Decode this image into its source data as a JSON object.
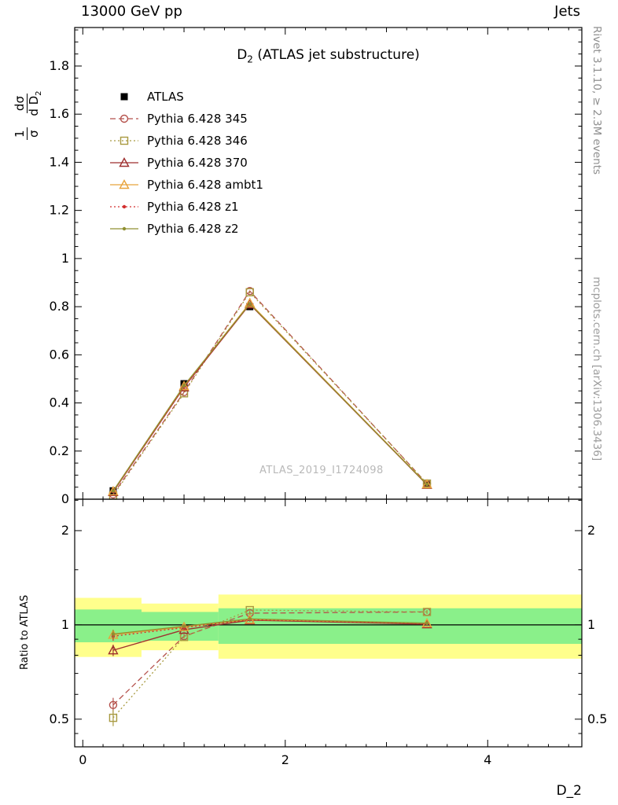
{
  "header": {
    "left": "13000 GeV pp",
    "right": "Jets"
  },
  "right_margin": {
    "top_note": "Rivet 3.1.10, ≥ 2.3M events",
    "bottom_note": "mcplots.cern.ch [arXiv:1306.3436]"
  },
  "watermark": "ATLAS_2019_I1724098",
  "title": {
    "prefix": "D",
    "subscript": "2",
    "suffix": " (ATLAS jet substructure)"
  },
  "axes": {
    "x_label": "D_2",
    "ratio_label": "Ratio to ATLAS",
    "y_label": {
      "frac1_num": "1",
      "frac1_den": "σ",
      "frac2_num": "dσ",
      "frac2_den_main": "d D",
      "frac2_den_sub": "2"
    }
  },
  "chart_data": {
    "type": "line",
    "x": [
      0.3,
      1.0,
      1.65,
      3.4
    ],
    "xlim": [
      -0.08,
      4.93
    ],
    "x_major_ticks": [
      0,
      2,
      4
    ],
    "main_panel": {
      "ylim": [
        0,
        1.96
      ],
      "y_major_ticks": [
        0,
        0.2,
        0.4,
        0.6,
        0.8,
        1,
        1.2,
        1.4,
        1.6,
        1.8
      ],
      "series": [
        {
          "label": "ATLAS",
          "color": "#000000",
          "marker": "square-filled",
          "line": "none",
          "values": [
            0.035,
            0.48,
            0.8,
            0.06
          ],
          "errors": [
            0.012,
            0.015,
            0.012,
            0.008
          ]
        },
        {
          "label": "Pythia 6.428 345",
          "color": "#b5524c",
          "marker": "circle-open",
          "line": "dashed",
          "values": [
            0.02,
            0.445,
            0.865,
            0.065
          ]
        },
        {
          "label": "Pythia 6.428 346",
          "color": "#a89a40",
          "marker": "square-open",
          "line": "dotted",
          "values": [
            0.015,
            0.44,
            0.86,
            0.065
          ]
        },
        {
          "label": "Pythia 6.428 370",
          "color": "#9e2f2f",
          "marker": "triangle-open",
          "line": "solid",
          "values": [
            0.03,
            0.465,
            0.81,
            0.06
          ]
        },
        {
          "label": "Pythia 6.428 ambt1",
          "color": "#e8a33c",
          "marker": "triangle-open",
          "line": "solid",
          "values": [
            0.033,
            0.47,
            0.815,
            0.062
          ]
        },
        {
          "label": "Pythia 6.428 z1",
          "color": "#d22f2f",
          "marker": "dot",
          "line": "dotted",
          "values": [
            0.032,
            0.468,
            0.81,
            0.061
          ]
        },
        {
          "label": "Pythia 6.428 z2",
          "color": "#8f8f30",
          "marker": "dot",
          "line": "solid",
          "values": [
            0.034,
            0.472,
            0.812,
            0.061
          ]
        }
      ]
    },
    "ratio_panel": {
      "scale": "log",
      "ylim": [
        0.408,
        2.52
      ],
      "y_major_ticks": [
        0.5,
        1,
        2
      ],
      "y_minor_ticks": [
        0.45,
        0.6,
        0.7,
        0.8,
        0.9,
        1.5,
        2.5
      ],
      "bands": {
        "yellow": {
          "color": "#ffff8c",
          "segments": [
            {
              "x0": -0.08,
              "x1": 0.58,
              "lo": 0.79,
              "hi": 1.22
            },
            {
              "x0": 0.58,
              "x1": 1.34,
              "lo": 0.83,
              "hi": 1.17
            },
            {
              "x0": 1.34,
              "x1": 4.93,
              "lo": 0.78,
              "hi": 1.25
            }
          ]
        },
        "green": {
          "color": "#8af08a",
          "segments": [
            {
              "x0": -0.08,
              "x1": 0.58,
              "lo": 0.88,
              "hi": 1.12
            },
            {
              "x0": 0.58,
              "x1": 1.34,
              "lo": 0.89,
              "hi": 1.1
            },
            {
              "x0": 1.34,
              "x1": 4.93,
              "lo": 0.87,
              "hi": 1.13
            }
          ]
        }
      },
      "series": [
        {
          "label": "Pythia 6.428 345",
          "values": [
            0.555,
            0.92,
            1.09,
            1.1
          ],
          "errors": [
            0.03,
            0.012,
            0.012,
            0.015
          ]
        },
        {
          "label": "Pythia 6.428 346",
          "values": [
            0.505,
            0.915,
            1.115,
            1.1
          ],
          "errors": [
            0.03,
            0.012,
            0.012,
            0.015
          ]
        },
        {
          "label": "Pythia 6.428 370",
          "values": [
            0.83,
            0.965,
            1.035,
            1.005
          ],
          "errors": [
            0.035,
            0.012,
            0.01,
            0.012
          ]
        },
        {
          "label": "Pythia 6.428 ambt1",
          "values": [
            0.93,
            0.985,
            1.04,
            1.012
          ],
          "errors": [
            0.03,
            0.01,
            0.01,
            0.012
          ]
        },
        {
          "label": "Pythia 6.428 z1",
          "values": [
            0.92,
            0.98,
            1.04,
            1.01
          ],
          "errors": [
            0.03,
            0.01,
            0.01,
            0.012
          ]
        },
        {
          "label": "Pythia 6.428 z2",
          "values": [
            0.935,
            0.99,
            1.045,
            1.013
          ],
          "errors": [
            0.03,
            0.01,
            0.01,
            0.012
          ]
        }
      ]
    }
  }
}
